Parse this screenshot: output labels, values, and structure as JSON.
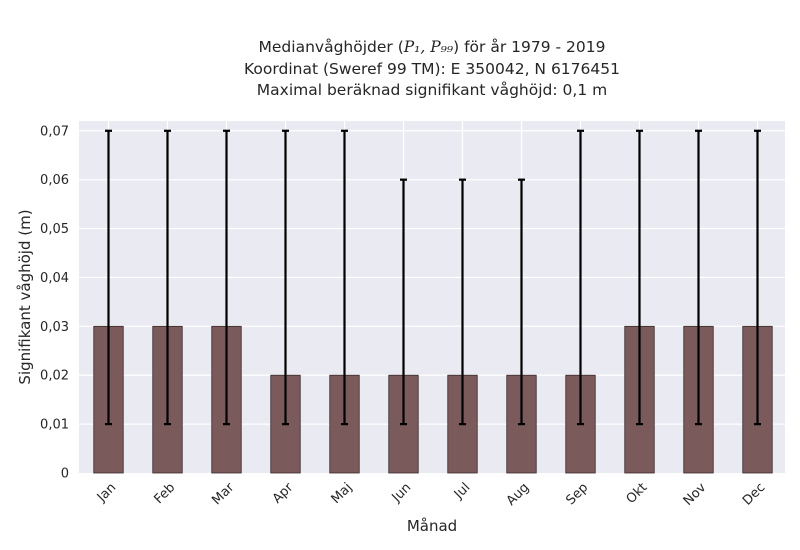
{
  "chart_data": {
    "type": "bar",
    "title": {
      "line1_prefix": "Medianvåghöjder (",
      "line1_math": "P₁, P₉₉",
      "line1_suffix": ") för år 1979 - 2019",
      "line2": "Koordinat (Sweref 99 TM): E 350042, N 6176451",
      "line3": "Maximal beräknad signifikant våghöjd: 0,1 m"
    },
    "xlabel": "Månad",
    "ylabel": "Signifikant våghöjd (m)",
    "categories": [
      "Jan",
      "Feb",
      "Mar",
      "Apr",
      "Maj",
      "Jun",
      "Jul",
      "Aug",
      "Sep",
      "Okt",
      "Nov",
      "Dec"
    ],
    "values": [
      0.03,
      0.03,
      0.03,
      0.02,
      0.02,
      0.02,
      0.02,
      0.02,
      0.02,
      0.03,
      0.03,
      0.03
    ],
    "error_low": [
      0.01,
      0.01,
      0.01,
      0.01,
      0.01,
      0.01,
      0.01,
      0.01,
      0.01,
      0.01,
      0.01,
      0.01
    ],
    "error_high": [
      0.07,
      0.07,
      0.07,
      0.07,
      0.07,
      0.06,
      0.06,
      0.06,
      0.07,
      0.07,
      0.07,
      0.07
    ],
    "ylim": [
      0,
      0.072
    ],
    "yticks": [
      0,
      0.01,
      0.02,
      0.03,
      0.04,
      0.05,
      0.06,
      0.07
    ],
    "ytick_labels": [
      "0",
      "0,01",
      "0,02",
      "0,03",
      "0,04",
      "0,05",
      "0,06",
      "0,07"
    ],
    "grid": true,
    "colors": {
      "bar": "#7a5a5a",
      "bar_edge": "#3a2a2a",
      "errorbar": "#000000",
      "plot_bg": "#eaeaf2",
      "grid": "#ffffff"
    }
  }
}
